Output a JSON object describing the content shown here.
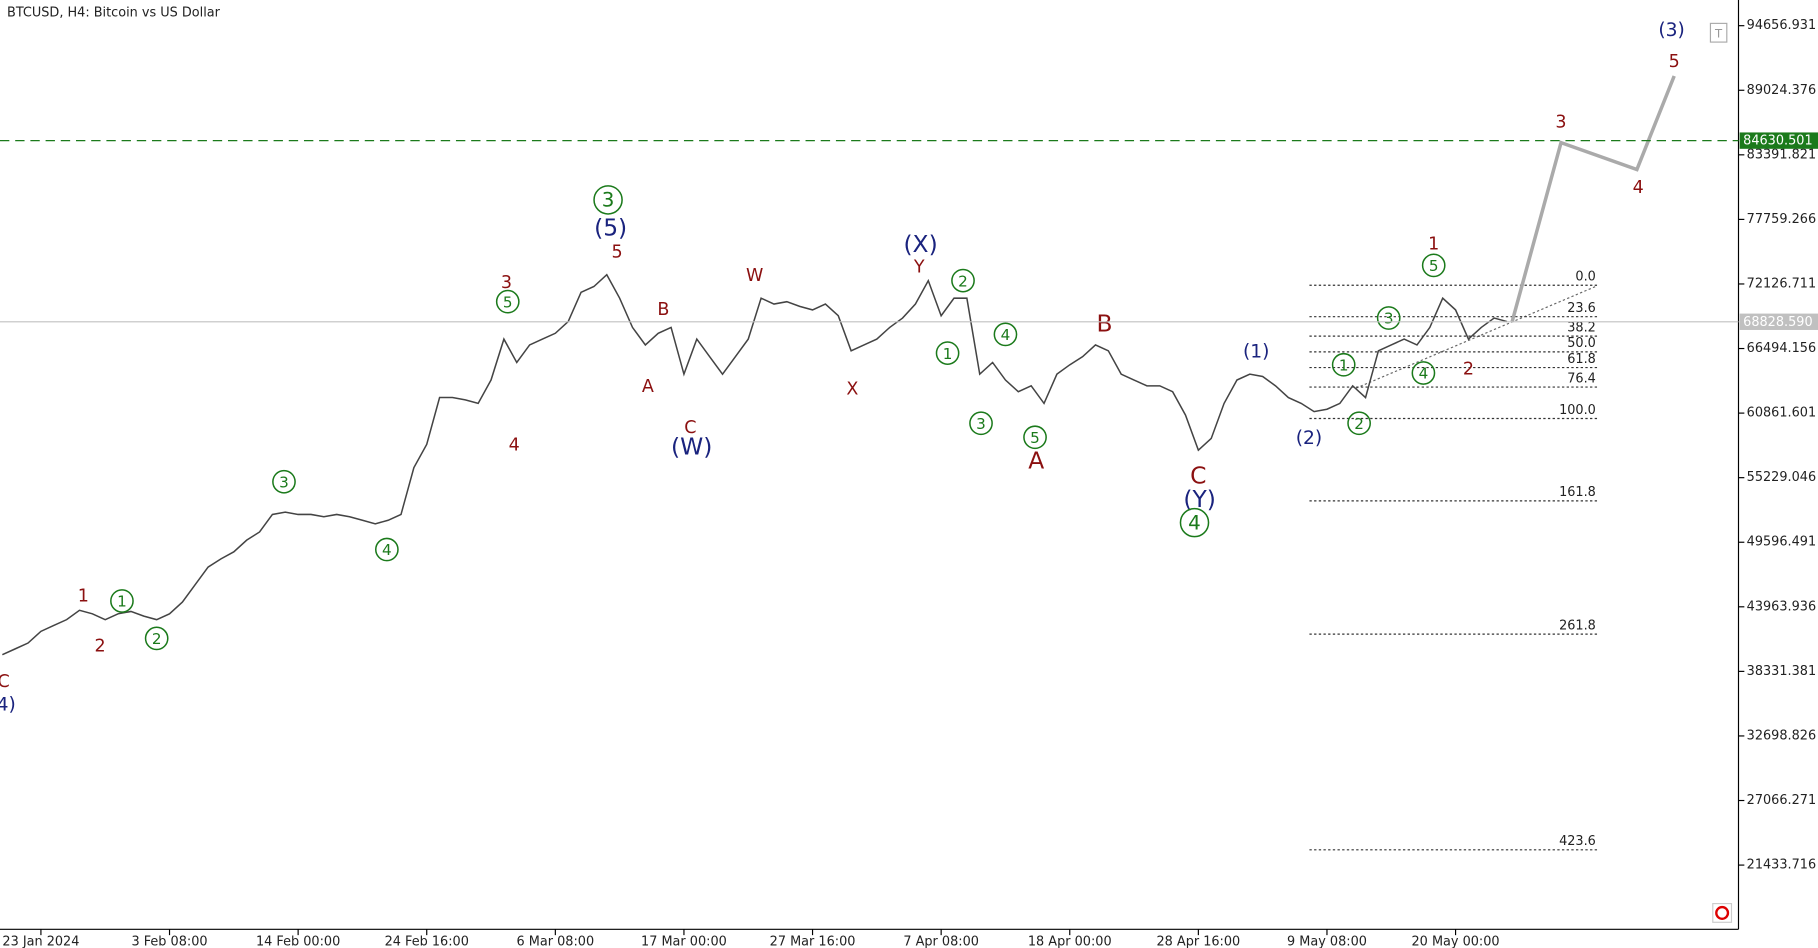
{
  "chart_data": {
    "type": "line",
    "title": "BTCUSD, H4:  Bitcoin vs US Dollar",
    "categories": [
      null,
      null,
      null,
      "23 Jan 2024",
      null,
      null,
      null,
      null,
      null,
      null,
      null,
      null,
      null,
      "3 Feb 08:00",
      null,
      null,
      null,
      null,
      null,
      null,
      null,
      null,
      null,
      "14 Feb 00:00",
      null,
      null,
      null,
      null,
      null,
      null,
      null,
      null,
      null,
      "24 Feb 16:00",
      null,
      null,
      null,
      null,
      null,
      null,
      null,
      null,
      null,
      "6 Mar 08:00",
      null,
      null,
      null,
      null,
      null,
      null,
      null,
      null,
      null,
      "17 Mar 00:00",
      null,
      null,
      null,
      null,
      null,
      null,
      null,
      null,
      null,
      "27 Mar 16:00",
      null,
      null,
      null,
      null,
      null,
      null,
      null,
      null,
      null,
      "7 Apr 08:00",
      null,
      null,
      null,
      null,
      null,
      null,
      null,
      null,
      null,
      "18 Apr 00:00",
      null,
      null,
      null,
      null,
      null,
      null,
      null,
      null,
      null,
      "28 Apr 16:00",
      null,
      null,
      null,
      null,
      null,
      null,
      null,
      null,
      null,
      "9 May 08:00",
      null,
      null,
      null,
      null,
      null,
      null,
      null,
      null,
      null,
      "20 May 00:00",
      null,
      null,
      null,
      null,
      null,
      null,
      null,
      null,
      null,
      null,
      null,
      null,
      null,
      null,
      null,
      null,
      null,
      null,
      null,
      null,
      null,
      null
    ],
    "values": [
      39780,
      40290,
      40800,
      41820,
      42330,
      42840,
      43656,
      43350,
      42840,
      43350,
      43554,
      43146,
      42840,
      43350,
      44370,
      45900,
      47430,
      48144,
      48756,
      49776,
      50490,
      52020,
      52224,
      52020,
      52020,
      51816,
      52020,
      51816,
      51510,
      51204,
      51510,
      52020,
      56100,
      58140,
      62220,
      62220,
      62016,
      61710,
      63750,
      67320,
      65280,
      66810,
      67320,
      67830,
      68850,
      71400,
      71910,
      72930,
      70890,
      68340,
      66810,
      67830,
      68340,
      64260,
      67320,
      65790,
      64260,
      65790,
      67320,
      70890,
      70380,
      70584,
      70176,
      69870,
      70380,
      69360,
      66300,
      66810,
      67320,
      68340,
      69156,
      70380,
      72420,
      69360,
      70890,
      70890,
      64260,
      65280,
      63750,
      62730,
      63240,
      61710,
      64260,
      65076,
      65790,
      66810,
      66300,
      64260,
      63750,
      63240,
      63240,
      62730,
      60690,
      57630,
      58650,
      61710,
      63750,
      64260,
      64056,
      63240,
      62220,
      61710,
      60996,
      61200,
      61710,
      63240,
      62220,
      66300,
      66810,
      67320,
      66810,
      68340,
      70890,
      69870,
      67320,
      68340,
      69156,
      68850,
      null,
      null,
      null,
      null,
      null,
      null,
      null,
      null,
      null,
      null,
      null,
      null,
      null,
      null,
      null,
      null,
      null,
      null
    ],
    "color": "#444444",
    "projection": {
      "x": [
        117.4,
        121.2,
        127.1,
        130.0
      ],
      "values": [
        68850,
        84460,
        82113,
        90272
      ],
      "color": "#aaaaaa"
    },
    "ylim": [
      15832,
      96898
    ],
    "yticks": [
      94656.931,
      89024.376,
      83391.821,
      77759.266,
      72126.711,
      66494.156,
      60861.601,
      55229.046,
      49596.491,
      43963.936,
      38331.381,
      32698.826,
      27066.271,
      21433.716
    ],
    "hlines": [
      {
        "value": 84630.501,
        "color": "#1b7a1b",
        "dashed": true
      },
      {
        "value": 68828.59,
        "label": "68828.590",
        "color": "#c0c0c0",
        "dashed": false
      }
    ],
    "fibonacci": {
      "high": 72016,
      "low": 60390,
      "levels": [
        {
          "value": 0,
          "label": "0.0"
        },
        23.6,
        38.2,
        {
          "value": 50,
          "label": "50.0"
        },
        61.8,
        76.4,
        {
          "value": 100,
          "label": "100.0"
        },
        161.8,
        261.8,
        423.6
      ]
    },
    "annotations": [
      {
        "text": "C",
        "x": 0.1,
        "y": 37500,
        "style": "red"
      },
      {
        "text": "4)",
        "x": 0.3,
        "y": 35500,
        "style": "navy"
      },
      {
        "text": "1",
        "x": 6.3,
        "y": 44982,
        "style": "red"
      },
      {
        "text": "2",
        "x": 7.6,
        "y": 40596,
        "style": "red"
      },
      {
        "text": "3",
        "x": 39.2,
        "y": 72318,
        "style": "red"
      },
      {
        "text": "4",
        "x": 39.8,
        "y": 58140,
        "style": "red"
      },
      {
        "text": "5",
        "x": 47.8,
        "y": 74970,
        "style": "red"
      },
      {
        "text": "A",
        "x": 50.2,
        "y": 63240,
        "style": "red"
      },
      {
        "text": "B",
        "x": 51.4,
        "y": 69972,
        "style": "red"
      },
      {
        "text": "C",
        "x": 53.5,
        "y": 59670,
        "style": "red"
      },
      {
        "text": "W",
        "x": 58.5,
        "y": 72930,
        "style": "red"
      },
      {
        "text": "X",
        "x": 66.1,
        "y": 63036,
        "style": "red"
      },
      {
        "text": "Y",
        "x": 71.3,
        "y": 73644,
        "style": "red"
      },
      {
        "text": "A",
        "x": 80.4,
        "y": 56712,
        "style": "red-large"
      },
      {
        "text": "B",
        "x": 85.7,
        "y": 68646,
        "style": "red-large"
      },
      {
        "text": "C",
        "x": 93.0,
        "y": 55386,
        "style": "red-large"
      },
      {
        "text": "1",
        "x": 111.3,
        "y": 75684,
        "style": "red"
      },
      {
        "text": "2",
        "x": 114.0,
        "y": 64770,
        "style": "red"
      },
      {
        "text": "3",
        "x": 121.2,
        "y": 86292,
        "style": "red"
      },
      {
        "text": "4",
        "x": 127.2,
        "y": 80580,
        "style": "red"
      },
      {
        "text": "5",
        "x": 130.0,
        "y": 91596,
        "style": "red"
      },
      {
        "text": "(5)",
        "x": 47.3,
        "y": 77010,
        "style": "navy-large"
      },
      {
        "text": "(W)",
        "x": 53.6,
        "y": 57936,
        "style": "navy-large"
      },
      {
        "text": "(X)",
        "x": 71.4,
        "y": 75582,
        "style": "navy-large"
      },
      {
        "text": "(Y)",
        "x": 93.1,
        "y": 53346,
        "style": "navy-large"
      },
      {
        "text": "(1)",
        "x": 97.5,
        "y": 66300,
        "style": "navy"
      },
      {
        "text": "(2)",
        "x": 101.6,
        "y": 58752,
        "style": "navy"
      },
      {
        "text": "(3)",
        "x": 129.8,
        "y": 94350,
        "style": "navy"
      },
      {
        "text": "1",
        "x": 9.3,
        "y": 44472,
        "style": "green"
      },
      {
        "text": "2",
        "x": 12.0,
        "y": 41208,
        "style": "green"
      },
      {
        "text": "3",
        "x": 21.9,
        "y": 54876,
        "style": "green"
      },
      {
        "text": "4",
        "x": 29.9,
        "y": 48960,
        "style": "green"
      },
      {
        "text": "5",
        "x": 39.3,
        "y": 70584,
        "style": "green"
      },
      {
        "text": "3",
        "x": 47.1,
        "y": 79458,
        "style": "green-large"
      },
      {
        "text": "1",
        "x": 73.5,
        "y": 66096,
        "style": "green"
      },
      {
        "text": "2",
        "x": 74.7,
        "y": 72420,
        "style": "green"
      },
      {
        "text": "3",
        "x": 76.1,
        "y": 59976,
        "style": "green"
      },
      {
        "text": "4",
        "x": 78.0,
        "y": 67728,
        "style": "green"
      },
      {
        "text": "5",
        "x": 80.3,
        "y": 58752,
        "style": "green"
      },
      {
        "text": "4",
        "x": 92.7,
        "y": 51306,
        "style": "green-large"
      },
      {
        "text": "1",
        "x": 104.3,
        "y": 65076,
        "style": "green"
      },
      {
        "text": "2",
        "x": 105.5,
        "y": 59976,
        "style": "green"
      },
      {
        "text": "3",
        "x": 107.8,
        "y": 69156,
        "style": "green"
      },
      {
        "text": "4",
        "x": 110.5,
        "y": 64362,
        "style": "green"
      },
      {
        "text": "5",
        "x": 111.3,
        "y": 73746,
        "style": "green"
      }
    ]
  }
}
